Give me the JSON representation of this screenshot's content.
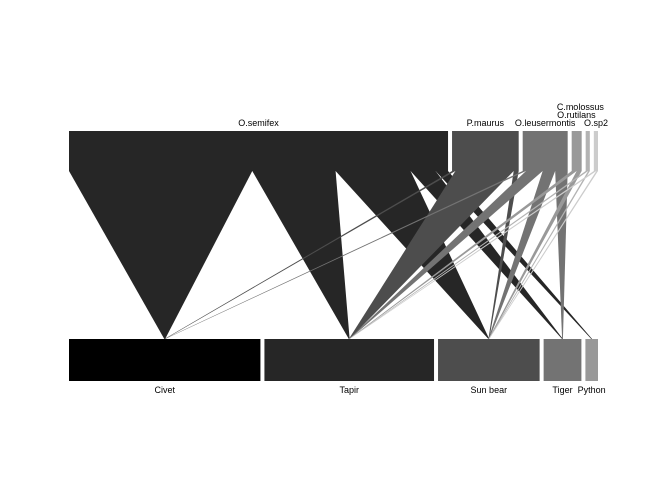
{
  "diagram": {
    "type": "bipartite-web",
    "upper": [
      {
        "key": "osem",
        "label": "O.semifex",
        "color": "#262626"
      },
      {
        "key": "pmau",
        "label": "P.maurus",
        "color": "#4d4d4d"
      },
      {
        "key": "oleu",
        "label": "O.leusermontis",
        "color": "#737373"
      },
      {
        "key": "orut",
        "label": "O.rutilans",
        "color": "#999999"
      },
      {
        "key": "cmol",
        "label": "C.molossus",
        "color": "#b3b3b3"
      },
      {
        "key": "osp2",
        "label": "O.sp2",
        "color": "#cccccc"
      }
    ],
    "lower": [
      {
        "key": "civet",
        "label": "Civet",
        "color": "#000000"
      },
      {
        "key": "tapir",
        "label": "Tapir",
        "color": "#262626"
      },
      {
        "key": "sunbear",
        "label": "Sun bear",
        "color": "#4d4d4d"
      },
      {
        "key": "tiger",
        "label": "Tiger",
        "color": "#737373"
      },
      {
        "key": "python",
        "label": "Python",
        "color": "#999999"
      }
    ],
    "links": [
      {
        "from": "osem",
        "to": "civet",
        "w": 22,
        "color": "#262626"
      },
      {
        "from": "osem",
        "to": "tapir",
        "w": 10,
        "color": "#262626"
      },
      {
        "from": "osem",
        "to": "sunbear",
        "w": 9,
        "color": "#262626"
      },
      {
        "from": "osem",
        "to": "tiger",
        "w": 3,
        "color": "#262626"
      },
      {
        "from": "osem",
        "to": "python",
        "w": 1.5,
        "color": "#262626"
      },
      {
        "from": "pmau",
        "to": "civet",
        "w": 0.4,
        "color": "#4d4d4d"
      },
      {
        "from": "pmau",
        "to": "tapir",
        "w": 7,
        "color": "#4d4d4d"
      },
      {
        "from": "pmau",
        "to": "sunbear",
        "w": 0.6,
        "color": "#4d4d4d"
      },
      {
        "from": "oleu",
        "to": "civet",
        "w": 0.4,
        "color": "#737373"
      },
      {
        "from": "oleu",
        "to": "tapir",
        "w": 2,
        "color": "#737373"
      },
      {
        "from": "oleu",
        "to": "sunbear",
        "w": 1.5,
        "color": "#737373"
      },
      {
        "from": "oleu",
        "to": "tiger",
        "w": 1.5,
        "color": "#737373"
      },
      {
        "from": "orut",
        "to": "tapir",
        "w": 0.6,
        "color": "#999999"
      },
      {
        "from": "orut",
        "to": "sunbear",
        "w": 0.6,
        "color": "#999999"
      },
      {
        "from": "cmol",
        "to": "tapir",
        "w": 0.3,
        "color": "#b3b3b3"
      },
      {
        "from": "cmol",
        "to": "sunbear",
        "w": 0.2,
        "color": "#b3b3b3"
      },
      {
        "from": "osp2",
        "to": "tapir",
        "w": 0.3,
        "color": "#cccccc"
      },
      {
        "from": "osp2",
        "to": "sunbear",
        "w": 0.2,
        "color": "#cccccc"
      }
    ]
  }
}
